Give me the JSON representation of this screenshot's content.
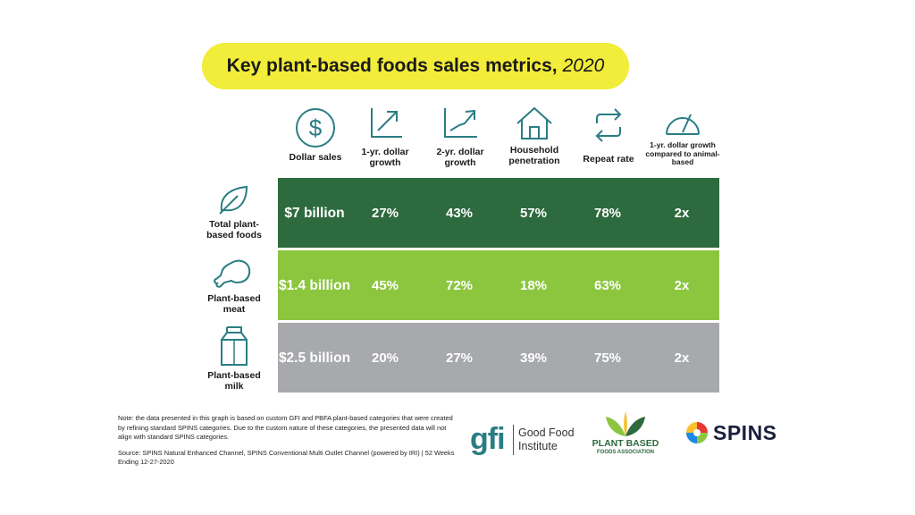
{
  "title": {
    "main": "Key plant-based foods sales metrics,",
    "year": "2020"
  },
  "columns": [
    {
      "label": "Dollar sales",
      "icon": "dollar-icon"
    },
    {
      "label": "1-yr. dollar growth",
      "icon": "arrow-up-right-icon"
    },
    {
      "label": "2-yr. dollar growth",
      "icon": "trend-up-icon"
    },
    {
      "label": "Household penetration",
      "icon": "house-icon"
    },
    {
      "label": "Repeat rate",
      "icon": "repeat-arrows-icon"
    },
    {
      "label": "1-yr. dollar growth compared to animal-based",
      "icon": "gauge-icon"
    }
  ],
  "rows": [
    {
      "label": "Total plant-based foods",
      "icon": "leaf-icon",
      "color": "#2d6a3e",
      "values": [
        "$7 billion",
        "27%",
        "43%",
        "57%",
        "78%",
        "2x"
      ]
    },
    {
      "label": "Plant-based meat",
      "icon": "chicken-leg-icon",
      "color": "#8cc63f",
      "values": [
        "$1.4 billion",
        "45%",
        "72%",
        "18%",
        "63%",
        "2x"
      ]
    },
    {
      "label": "Plant-based milk",
      "icon": "milk-carton-icon",
      "color": "#a7a9ac",
      "values": [
        "$2.5 billion",
        "20%",
        "27%",
        "39%",
        "75%",
        "2x"
      ]
    }
  ],
  "note": "Note: the data presented in this graph is based on custom GFI and PBFA plant-based categories that were created by refining standard SPINS categories. Due to the custom nature of these categories, the presented data will not align with standard SPINS categories.",
  "source": "Source: SPINS Natural Enhanced Channel, SPINS Conventional Multi Outlet Channel (powered by IRI) | 52 Weeks Ending 12-27-2020",
  "logos": {
    "gfi": {
      "mark": "gfi",
      "name_line1": "Good Food",
      "name_line2": "Institute"
    },
    "pbfa": {
      "line1": "PLANT BASED",
      "line2": "FOODS ASSOCIATION"
    },
    "spins": {
      "name": "SPINS"
    }
  },
  "colors": {
    "title_bg": "#f2ec3a",
    "icon_teal": "#2a7d84",
    "dark_green": "#2d6a3e",
    "light_green": "#8cc63f",
    "gray": "#a7a9ac"
  }
}
